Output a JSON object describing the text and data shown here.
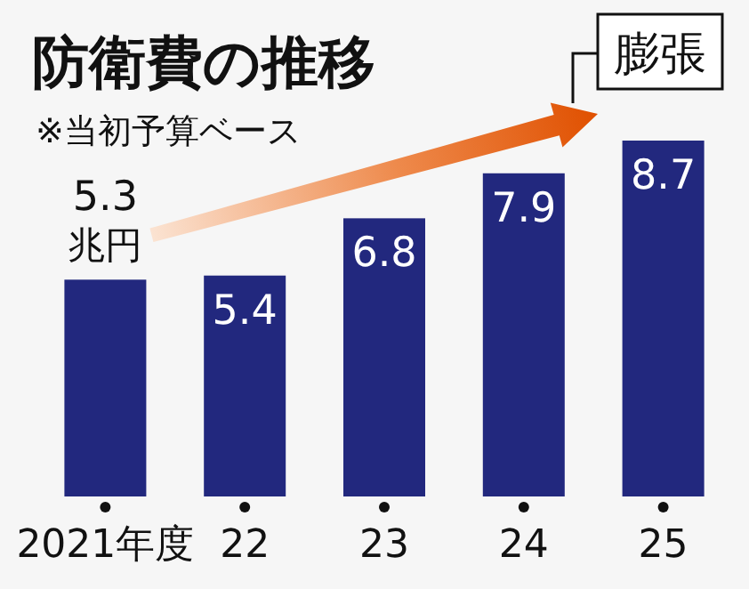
{
  "chart_data": {
    "type": "bar",
    "title": "防衛費の推移",
    "subtitle": "※当初予算ベース",
    "categories": [
      "2021年度",
      "22",
      "23",
      "24",
      "25"
    ],
    "values": [
      5.3,
      5.4,
      6.8,
      7.9,
      8.7
    ],
    "color": "#22287e",
    "value_labels": [
      "5.3\n兆円",
      "5.4",
      "6.8",
      "7.9",
      "8.7"
    ],
    "relative": false,
    "annotations": [
      "膨張"
    ]
  }
}
